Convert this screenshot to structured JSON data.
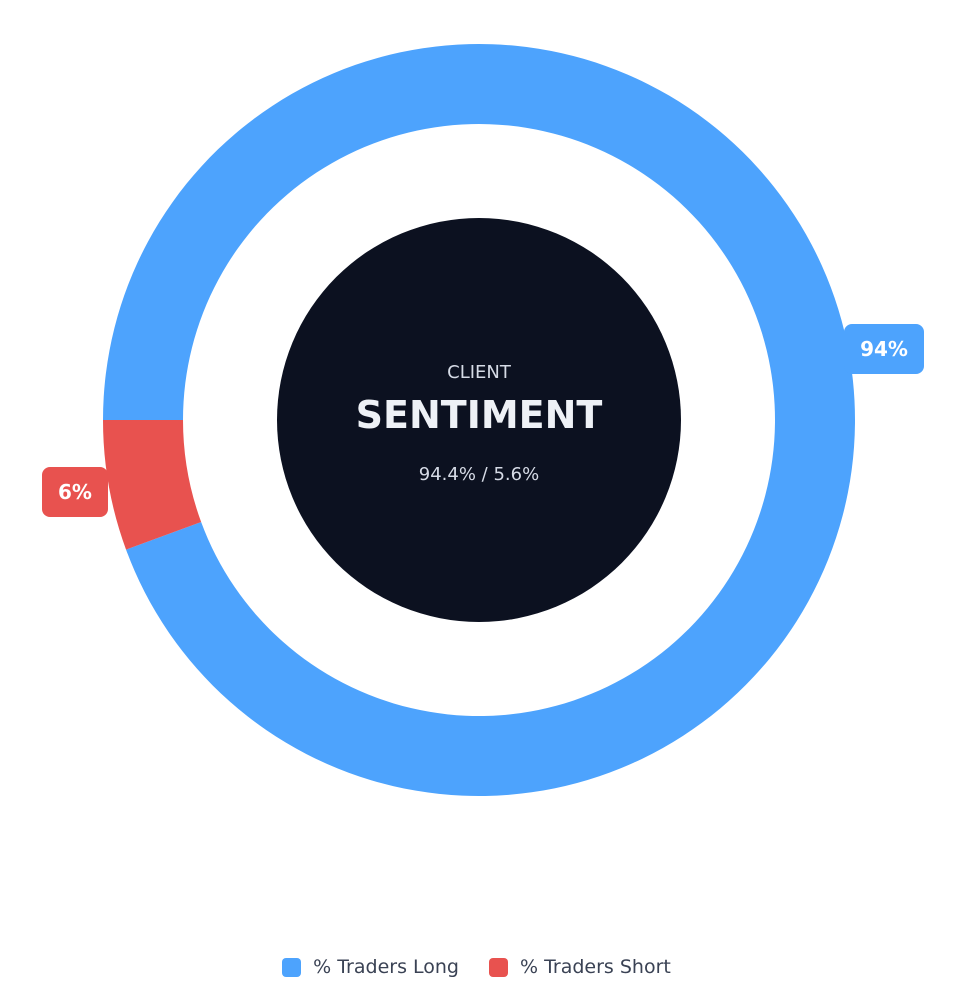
{
  "chart_data": {
    "type": "pie",
    "center": {
      "kicker": "CLIENT",
      "title": "SENTIMENT",
      "ratio": "94.4% / 5.6%"
    },
    "slices": [
      {
        "name": "% Traders Long",
        "value": 94.4,
        "label": "94%",
        "color": "#4da3fd"
      },
      {
        "name": "% Traders Short",
        "value": 5.6,
        "label": "6%",
        "color": "#e8524f"
      }
    ],
    "legend_position": "bottom",
    "center_fill": "#0c1120"
  }
}
